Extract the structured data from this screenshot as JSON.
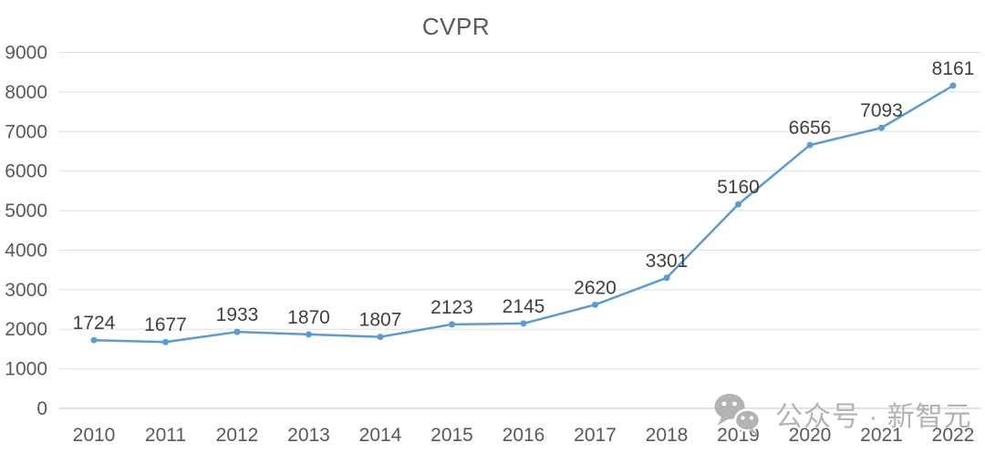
{
  "chart_data": {
    "type": "line",
    "title": "CVPR",
    "categories": [
      "2010",
      "2011",
      "2012",
      "2013",
      "2014",
      "2015",
      "2016",
      "2017",
      "2018",
      "2019",
      "2020",
      "2021",
      "2022"
    ],
    "series": [
      {
        "name": "CVPR",
        "values": [
          1724,
          1677,
          1933,
          1870,
          1807,
          2123,
          2145,
          2620,
          3301,
          5160,
          6656,
          7093,
          8161
        ]
      }
    ],
    "xlabel": "",
    "ylabel": "",
    "ylim": [
      0,
      9000
    ],
    "yticks": [
      0,
      1000,
      2000,
      3000,
      4000,
      5000,
      6000,
      7000,
      8000,
      9000
    ],
    "grid": true,
    "legend_position": "none",
    "data_labels": true,
    "marker": "circle"
  },
  "colors": {
    "line": "#5b9bd5",
    "grid": "#dedede",
    "axis_line": "#c4c4c4",
    "axis_text": "#595959",
    "label_text": "#404040",
    "title_text": "#595959",
    "watermark": "#b3b3b3"
  },
  "watermark": {
    "icon": "wechat-icon",
    "text": "公众号 · 新智元"
  }
}
